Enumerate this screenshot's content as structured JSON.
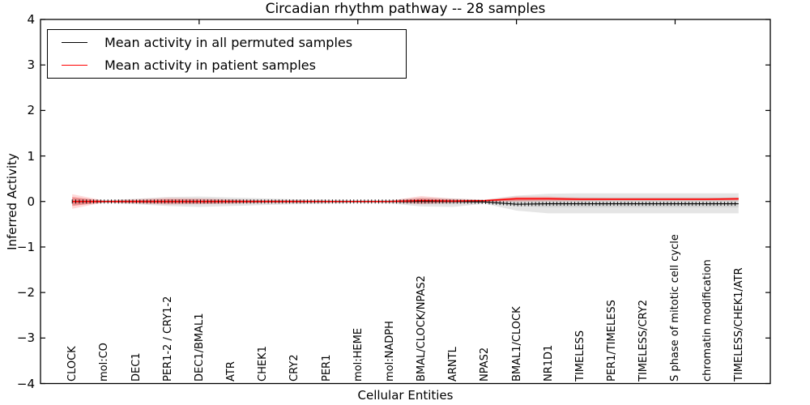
{
  "figure": {
    "title": "Circadian rhythm pathway -- 28 samples",
    "xlabel": "Cellular Entities",
    "ylabel": "Inferred Activity"
  },
  "legend": {
    "position": "upper left",
    "items": [
      {
        "label": "Mean activity in all permuted samples",
        "color": "#000000"
      },
      {
        "label": "Mean activity in patient samples",
        "color": "#ff0000"
      }
    ]
  },
  "chart_data": {
    "type": "line",
    "title": "Circadian rhythm pathway -- 28 samples",
    "xlabel": "Cellular Entities",
    "ylabel": "Inferred Activity",
    "ylim": [
      -4,
      4
    ],
    "yticks": [
      4,
      3,
      2,
      1,
      0,
      -1,
      -2,
      -3,
      -4
    ],
    "yticklabels": [
      "4",
      "3",
      "2",
      "1",
      "0",
      "−1",
      "−2",
      "−3",
      "−4"
    ],
    "xlim_units": [
      0,
      23
    ],
    "unlabeled_xticks_units": [
      5,
      10,
      15,
      20
    ],
    "grid": false,
    "legend_position": "upper left",
    "categories": [
      "CLOCK",
      "mol:CO",
      "DEC1",
      "PER1-2 / CRY1-2",
      "DEC1/BMAL1",
      "ATR",
      "CHEK1",
      "CRY2",
      "PER1",
      "mol:HEME",
      "mol:NADPH",
      "BMAL/CLOCK/NPAS2",
      "ARNTL",
      "NPAS2",
      "BMAL1/CLOCK",
      "NR1D1",
      "TIMELESS",
      "PER1/TIMELESS",
      "TIMELESS/CRY2",
      "S phase of mitotic cell cycle",
      "chromatin modification",
      "TIMELESS/CHEK1/ATR"
    ],
    "series": [
      {
        "name": "Mean activity in all permuted samples",
        "color": "#000000",
        "marker": "vertical-tick",
        "values": [
          0,
          0,
          0,
          0,
          0,
          0,
          0,
          0,
          0,
          0,
          0,
          0,
          0,
          -0.01,
          -0.06,
          -0.05,
          -0.05,
          -0.05,
          -0.05,
          -0.05,
          -0.05,
          -0.05
        ]
      },
      {
        "name": "Mean activity in patient samples",
        "color": "#ff0000",
        "marker": "none",
        "values": [
          0,
          0,
          0,
          0,
          0,
          0,
          0,
          0,
          0,
          0,
          0,
          0.02,
          0.01,
          0.02,
          0.06,
          0.06,
          0.05,
          0.05,
          0.05,
          0.05,
          0.05,
          0.06
        ]
      }
    ],
    "bands": [
      {
        "name": "permuted-spread-outer",
        "color": "rgba(0,0,0,0.10)",
        "upper": [
          0.09,
          0.03,
          0.06,
          0.1,
          0.11,
          0.09,
          0.07,
          0.05,
          0.04,
          0.03,
          0.03,
          0.09,
          0.07,
          0.04,
          0.13,
          0.17,
          0.18,
          0.18,
          0.18,
          0.18,
          0.18,
          0.18
        ],
        "lower": [
          -0.09,
          -0.03,
          -0.06,
          -0.1,
          -0.12,
          -0.1,
          -0.08,
          -0.06,
          -0.05,
          -0.03,
          -0.04,
          -0.11,
          -0.12,
          -0.05,
          -0.2,
          -0.26,
          -0.26,
          -0.26,
          -0.26,
          -0.26,
          -0.26,
          -0.26
        ]
      },
      {
        "name": "permuted-spread-inner",
        "color": "rgba(0,0,0,0.07)",
        "upper": [
          0.05,
          0.02,
          0.03,
          0.05,
          0.06,
          0.05,
          0.04,
          0.03,
          0.02,
          0.02,
          0.02,
          0.05,
          0.04,
          0.02,
          0.06,
          0.08,
          0.09,
          0.09,
          0.09,
          0.09,
          0.09,
          0.09
        ],
        "lower": [
          -0.05,
          -0.02,
          -0.03,
          -0.05,
          -0.06,
          -0.05,
          -0.04,
          -0.03,
          -0.03,
          -0.02,
          -0.02,
          -0.06,
          -0.06,
          -0.03,
          -0.1,
          -0.13,
          -0.13,
          -0.13,
          -0.13,
          -0.13,
          -0.13,
          -0.13
        ]
      },
      {
        "name": "patient-spread-outer",
        "color": "rgba(255,0,0,0.15)",
        "upper": [
          0.16,
          0.02,
          0.05,
          0.08,
          0.07,
          0.05,
          0.03,
          0.03,
          0.02,
          0.01,
          0.02,
          0.12,
          0.06,
          0.04,
          0.11,
          0.11,
          0.09,
          0.08,
          0.08,
          0.08,
          0.08,
          0.09
        ],
        "lower": [
          -0.16,
          -0.02,
          -0.04,
          -0.07,
          -0.06,
          -0.05,
          -0.03,
          -0.03,
          -0.02,
          -0.01,
          -0.01,
          -0.06,
          -0.03,
          -0.01,
          0.0,
          0.01,
          0.01,
          0.02,
          0.02,
          0.02,
          0.02,
          0.02
        ]
      },
      {
        "name": "patient-spread-inner",
        "color": "rgba(255,0,0,0.25)",
        "upper": [
          0.1,
          0.01,
          0.03,
          0.05,
          0.04,
          0.03,
          0.02,
          0.02,
          0.01,
          0.01,
          0.01,
          0.07,
          0.04,
          0.03,
          0.09,
          0.09,
          0.07,
          0.07,
          0.07,
          0.07,
          0.07,
          0.07
        ],
        "lower": [
          -0.1,
          -0.01,
          -0.03,
          -0.04,
          -0.04,
          -0.03,
          -0.02,
          -0.02,
          -0.01,
          -0.01,
          -0.01,
          -0.03,
          -0.02,
          0.0,
          0.02,
          0.03,
          0.03,
          0.03,
          0.03,
          0.03,
          0.03,
          0.03
        ]
      }
    ]
  }
}
